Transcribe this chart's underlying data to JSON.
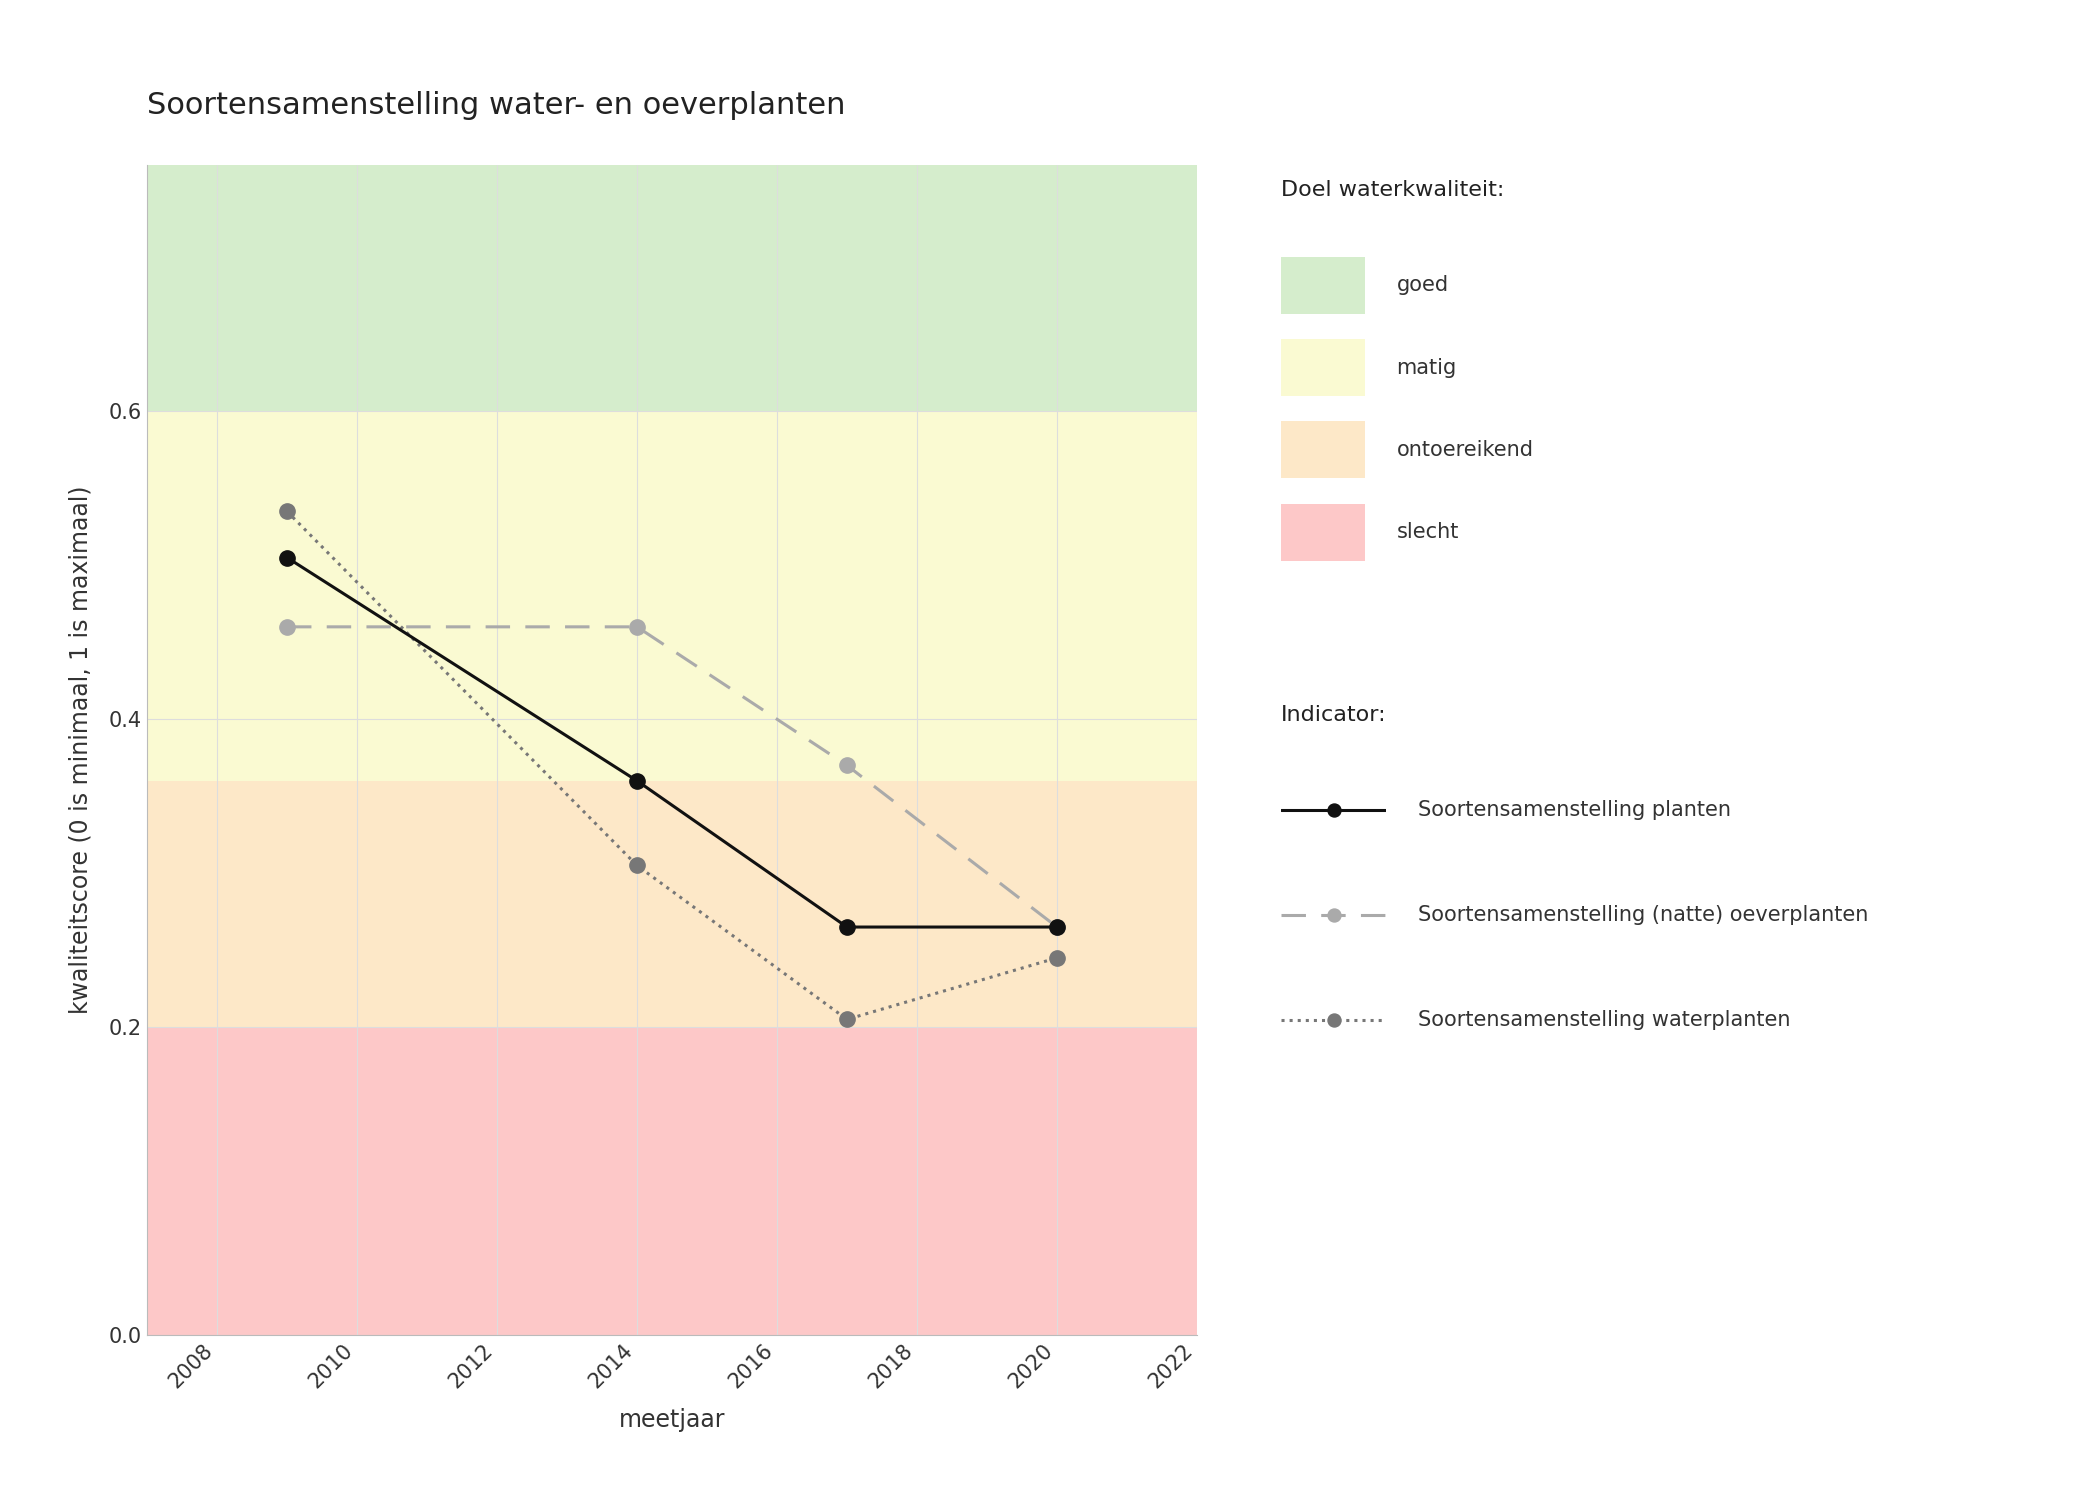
{
  "title": "Soortensamenstelling water- en oeverplanten",
  "xlabel": "meetjaar",
  "ylabel": "kwaliteitscore (0 is minimaal, 1 is maximaal)",
  "xlim": [
    2007,
    2022
  ],
  "ylim": [
    0.0,
    0.76
  ],
  "xticks": [
    2008,
    2010,
    2012,
    2014,
    2016,
    2018,
    2020,
    2022
  ],
  "yticks": [
    0.0,
    0.2,
    0.4,
    0.6
  ],
  "bg_colors": {
    "goed": "#d5edcc",
    "matig": "#fafad2",
    "ontoereikend": "#fde8c8",
    "slecht": "#fdc8c8"
  },
  "bg_ranges": {
    "goed": [
      0.6,
      0.76
    ],
    "matig": [
      0.36,
      0.6
    ],
    "ontoereikend": [
      0.2,
      0.36
    ],
    "slecht": [
      0.0,
      0.2
    ]
  },
  "line1_label": "Soortensamenstelling planten",
  "line1_x": [
    2009,
    2014,
    2017,
    2020
  ],
  "line1_y": [
    0.505,
    0.36,
    0.265,
    0.265
  ],
  "line1_color": "#111111",
  "line2_label": "Soortensamenstelling (natte) oeverplanten",
  "line2_x": [
    2009,
    2014,
    2017,
    2020
  ],
  "line2_y": [
    0.46,
    0.46,
    0.37,
    0.265
  ],
  "line2_color": "#aaaaaa",
  "line3_label": "Soortensamenstelling waterplanten",
  "line3_x": [
    2009,
    2014,
    2017,
    2020
  ],
  "line3_y": [
    0.535,
    0.305,
    0.205,
    0.245
  ],
  "line3_color": "#777777",
  "legend_doel_title": "Doel waterkwaliteit:",
  "legend_doel_labels": [
    "goed",
    "matig",
    "ontoereikend",
    "slecht"
  ],
  "legend_indicator_title": "Indicator:",
  "figure_bg": "#ffffff",
  "grid_color": "#dddddd",
  "title_fontsize": 22,
  "label_fontsize": 17,
  "tick_fontsize": 15,
  "legend_fontsize": 15,
  "legend_title_fontsize": 16,
  "markersize": 11,
  "linewidth": 2.2
}
